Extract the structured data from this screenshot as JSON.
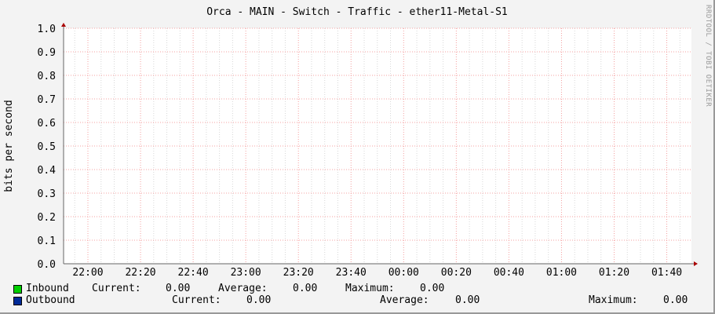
{
  "chart_data": {
    "type": "line",
    "title": "Orca - MAIN - Switch - Traffic - ether11-Metal-S1",
    "ylabel": "bits per second",
    "xlabel": "",
    "ylim": [
      0,
      1.0
    ],
    "yticks": [
      "0.0",
      "0.1",
      "0.2",
      "0.3",
      "0.4",
      "0.5",
      "0.6",
      "0.7",
      "0.8",
      "0.9",
      "1.0"
    ],
    "xticks": [
      "22:00",
      "22:20",
      "22:40",
      "23:00",
      "23:20",
      "23:40",
      "00:00",
      "00:20",
      "00:40",
      "01:00",
      "01:20",
      "01:40"
    ],
    "grid": true,
    "series": [
      {
        "name": "Inbound",
        "color": "#00cf00",
        "values": []
      },
      {
        "name": "Outbound",
        "color": "#002a97",
        "values": []
      }
    ]
  },
  "legend": {
    "inbound": {
      "name": "Inbound",
      "current_label": "Current:",
      "current": "0.00",
      "average_label": "Average:",
      "average": "0.00",
      "maximum_label": "Maximum:",
      "maximum": "0.00"
    },
    "outbound": {
      "name": "Outbound",
      "current_label": "Current:",
      "current": "0.00",
      "average_label": "Average:",
      "average": "0.00",
      "maximum_label": "Maximum:",
      "maximum": "0.00"
    }
  },
  "watermark": "RRDTOOL / TOBI OETIKER"
}
